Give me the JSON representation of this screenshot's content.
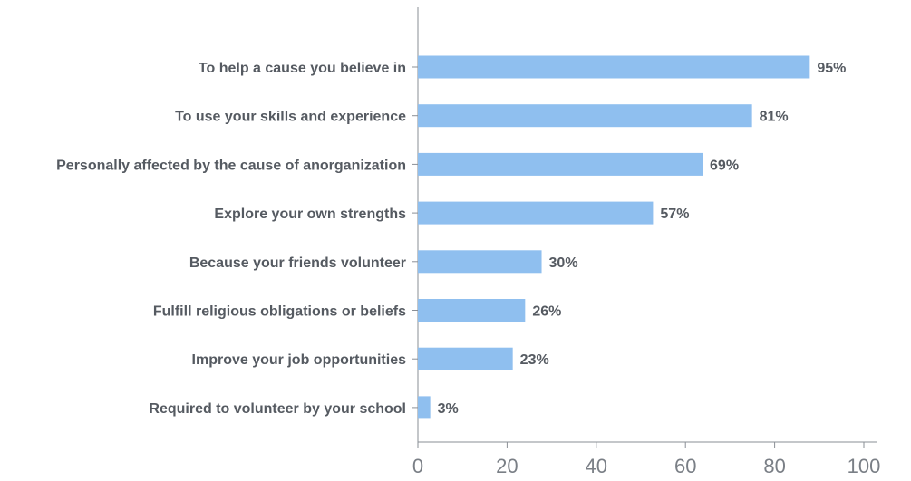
{
  "chart_data": {
    "type": "bar",
    "orientation": "horizontal",
    "categories": [
      "To help a cause you believe in",
      "To use your skills and experience",
      "Personally affected by the cause of anorganization",
      "Explore your own strengths",
      "Because your friends volunteer",
      "Fulfill religious obligations or beliefs",
      "Improve your job opportunities",
      "Required to volunteer by your school"
    ],
    "values": [
      95,
      81,
      69,
      57,
      30,
      26,
      23,
      3
    ],
    "bar_value_scale": 0.925,
    "value_labels": [
      "95%",
      "81%",
      "69%",
      "57%",
      "30%",
      "26%",
      "23%",
      "3%"
    ],
    "xlim": [
      0,
      100
    ],
    "xticks": [
      0,
      20,
      40,
      60,
      80,
      100
    ],
    "xtick_labels": [
      "0",
      "20",
      "40",
      "60",
      "80",
      "100"
    ],
    "bar_color": "#8fbfef",
    "text_color": "#555a61",
    "grid": false,
    "legend": "none"
  }
}
